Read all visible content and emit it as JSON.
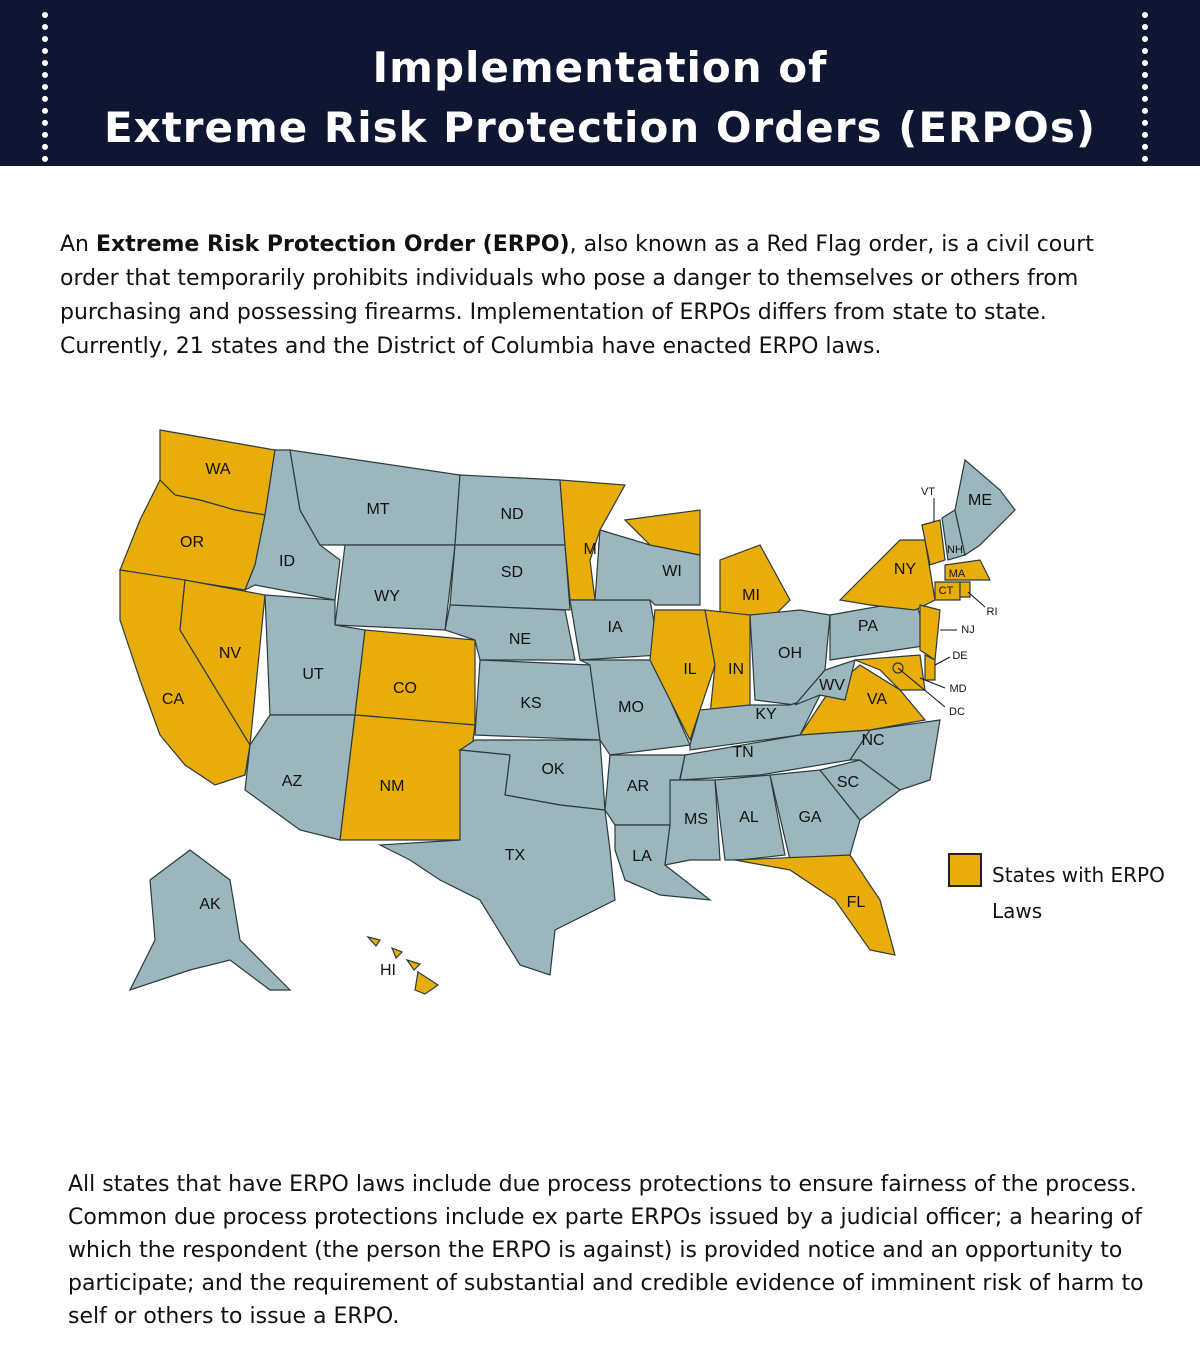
{
  "header": {
    "title_line1": "Implementation of",
    "title_line2": "Extreme Risk Protection Orders (ERPOs)"
  },
  "intro": {
    "prefix": "An",
    "bold": "Extreme Risk Protection Order (ERPO)",
    "text": ", also known as a Red Flag order, is a civil court order that temporarily prohibits individuals who pose a danger to themselves or others from purchasing and possessing firearms. Implementation of ERPOs differs from state to state. Currently, 21 states and the District of Columbia have enacted ERPO laws."
  },
  "map": {
    "erpo_color": "#e8ad0a",
    "other_color": "#9bb6bc",
    "states": [
      {
        "label": "WA",
        "erpo": true
      },
      {
        "label": "OR",
        "erpo": true
      },
      {
        "label": "CA",
        "erpo": true
      },
      {
        "label": "NV",
        "erpo": true
      },
      {
        "label": "ID",
        "erpo": false
      },
      {
        "label": "MT",
        "erpo": false
      },
      {
        "label": "WY",
        "erpo": false
      },
      {
        "label": "UT",
        "erpo": false
      },
      {
        "label": "CO",
        "erpo": true
      },
      {
        "label": "AZ",
        "erpo": false
      },
      {
        "label": "NM",
        "erpo": true
      },
      {
        "label": "ND",
        "erpo": false
      },
      {
        "label": "SD",
        "erpo": false
      },
      {
        "label": "NE",
        "erpo": false
      },
      {
        "label": "KS",
        "erpo": false
      },
      {
        "label": "OK",
        "erpo": false
      },
      {
        "label": "TX",
        "erpo": false
      },
      {
        "label": "MN",
        "erpo": true
      },
      {
        "label": "IA",
        "erpo": false
      },
      {
        "label": "MO",
        "erpo": false
      },
      {
        "label": "AR",
        "erpo": false
      },
      {
        "label": "LA",
        "erpo": false
      },
      {
        "label": "WI",
        "erpo": false
      },
      {
        "label": "IL",
        "erpo": true
      },
      {
        "label": "MI",
        "erpo": true
      },
      {
        "label": "IN",
        "erpo": true
      },
      {
        "label": "OH",
        "erpo": false
      },
      {
        "label": "KY",
        "erpo": false
      },
      {
        "label": "TN",
        "erpo": false
      },
      {
        "label": "MS",
        "erpo": false
      },
      {
        "label": "AL",
        "erpo": false
      },
      {
        "label": "GA",
        "erpo": false
      },
      {
        "label": "FL",
        "erpo": true
      },
      {
        "label": "SC",
        "erpo": false
      },
      {
        "label": "NC",
        "erpo": false
      },
      {
        "label": "VA",
        "erpo": true
      },
      {
        "label": "WV",
        "erpo": false
      },
      {
        "label": "PA",
        "erpo": false
      },
      {
        "label": "NY",
        "erpo": true
      },
      {
        "label": "VT",
        "erpo": true
      },
      {
        "label": "NH",
        "erpo": false
      },
      {
        "label": "ME",
        "erpo": false
      },
      {
        "label": "MA",
        "erpo": true
      },
      {
        "label": "CT",
        "erpo": true
      },
      {
        "label": "RI",
        "erpo": true
      },
      {
        "label": "NJ",
        "erpo": true
      },
      {
        "label": "DE",
        "erpo": true
      },
      {
        "label": "MD",
        "erpo": true
      },
      {
        "label": "DC",
        "erpo": true
      },
      {
        "label": "AK",
        "erpo": false
      },
      {
        "label": "HI",
        "erpo": true
      }
    ]
  },
  "legend": {
    "label": "States with ERPO Laws"
  },
  "footer": {
    "text": "All states that have ERPO laws include due process protections to ensure fairness of the process. Common due process protections include ex parte ERPOs issued by a judicial officer; a hearing of which the respondent (the person the ERPO is against) is provided notice and an opportunity to participate; and the requirement of substantial and credible evidence of imminent risk of harm to self or others to issue a ERPO."
  }
}
